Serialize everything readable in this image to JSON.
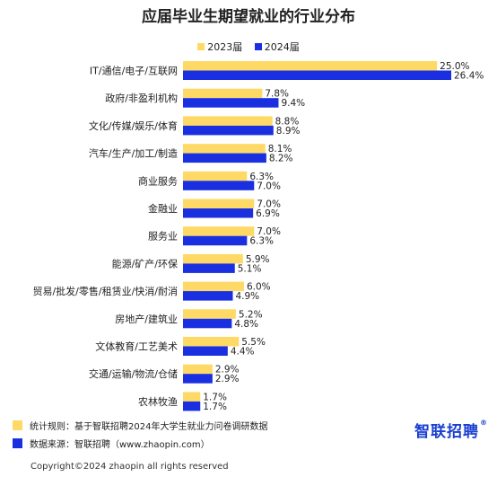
{
  "title": "应届毕业生期望就业的行业分布",
  "colors": {
    "s2023": "#ffd966",
    "s2024": "#1a2fe0",
    "footer_sq1": "#ffd966",
    "footer_sq2": "#1a2fe0"
  },
  "chart_data": {
    "type": "bar",
    "orientation": "horizontal",
    "title": "应届毕业生期望就业的行业分布",
    "categories": [
      "IT/通信/电子/互联网",
      "政府/非盈利机构",
      "文化/传媒/娱乐/体育",
      "汽车/生产/加工/制造",
      "商业服务",
      "金融业",
      "服务业",
      "能源/矿产/环保",
      "贸易/批发/零售/租赁业/快消/耐消",
      "房地产/建筑业",
      "文体教育/工艺美术",
      "交通/运输/物流/仓储",
      "农林牧渔"
    ],
    "series": [
      {
        "name": "2023届",
        "values": [
          25.0,
          7.8,
          8.8,
          8.1,
          6.3,
          7.0,
          7.0,
          5.9,
          6.0,
          5.2,
          5.5,
          2.9,
          1.7
        ],
        "labels": [
          "25.0%",
          "7.8%",
          "8.8%",
          "8.1%",
          "6.3%",
          "7.0%",
          "7.0%",
          "5.9%",
          "6.0%",
          "5.2%",
          "5.5%",
          "2.9%",
          "1.7%"
        ]
      },
      {
        "name": "2024届",
        "values": [
          26.4,
          9.4,
          8.9,
          8.2,
          7.0,
          6.9,
          6.3,
          5.1,
          4.9,
          4.8,
          4.4,
          2.9,
          1.7
        ],
        "labels": [
          "26.4%",
          "9.4%",
          "8.9%",
          "8.2%",
          "7.0%",
          "6.9%",
          "6.3%",
          "5.1%",
          "4.9%",
          "4.8%",
          "4.4%",
          "2.9%",
          "1.7%"
        ]
      }
    ],
    "grid": false,
    "legend_position": "top"
  },
  "footer": {
    "stat_rule": "统计规则：基于智联招聘2024年大学生就业力问卷调研数据",
    "data_source": "数据来源：智联招聘（www.zhaopin.com）",
    "logo": "智联招聘",
    "logo_mark": "®",
    "copyright": "Copyright©2024 zhaopin all rights reserved"
  }
}
